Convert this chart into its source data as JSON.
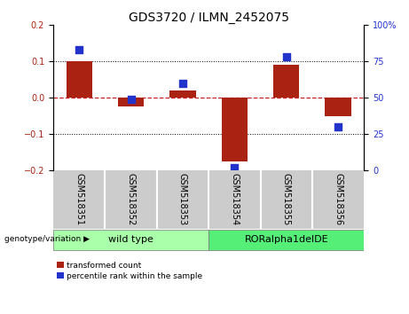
{
  "title": "GDS3720 / ILMN_2452075",
  "categories": [
    "GSM518351",
    "GSM518352",
    "GSM518353",
    "GSM518354",
    "GSM518355",
    "GSM518356"
  ],
  "red_values": [
    0.1,
    -0.025,
    0.02,
    -0.175,
    0.09,
    -0.05
  ],
  "blue_values_pct": [
    83,
    49,
    60,
    2,
    78,
    30
  ],
  "ylim_left": [
    -0.2,
    0.2
  ],
  "ylim_right": [
    0,
    100
  ],
  "yticks_left": [
    -0.2,
    -0.1,
    0.0,
    0.1,
    0.2
  ],
  "yticks_right": [
    0,
    25,
    50,
    75,
    100
  ],
  "red_color": "#aa2211",
  "blue_color": "#2233cc",
  "genotype_labels": [
    "wild type",
    "RORalpha1delDE"
  ],
  "genotype_colors": [
    "#aaffaa",
    "#55ee77"
  ],
  "genotype_ranges": [
    [
      0,
      3
    ],
    [
      3,
      6
    ]
  ],
  "legend_red": "transformed count",
  "legend_blue": "percentile rank within the sample",
  "bar_width": 0.5,
  "dot_size": 28,
  "background_color": "#ffffff",
  "zero_line_color": "#cc2222",
  "label_fontsize": 7,
  "title_fontsize": 10,
  "xlabel_bg": "#cccccc",
  "geno_label_fontsize": 8
}
